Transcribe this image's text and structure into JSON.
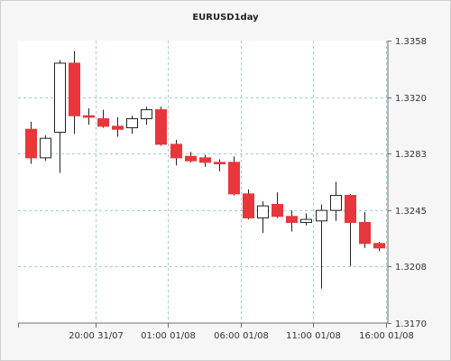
{
  "chart_data": {
    "type": "candlestick",
    "title": "EURUSD1day",
    "y_axis": {
      "ticks": [
        "1.3358",
        "1.3320",
        "1.3283",
        "1.3245",
        "1.3208",
        "1.3170"
      ],
      "ylim": [
        1.317,
        1.3358
      ],
      "position": "right"
    },
    "x_axis": {
      "ticks": [
        "20:00 31/07",
        "01:00 01/08",
        "06:00 01/08",
        "11:00 01/08",
        "16:00 01/08"
      ],
      "tick_index": [
        4.5,
        9.5,
        14.5,
        19.5,
        24.5
      ]
    },
    "grid": true,
    "colors": {
      "bull_fill": "#ffffff",
      "bear_fill": "#e8363c",
      "outline": "#222222",
      "grid": "#9ecfcf",
      "plot_bg": "#ffffff",
      "page_bg": "#f6f6f6"
    },
    "candles": [
      {
        "o": 1.3299,
        "h": 1.3304,
        "l": 1.3276,
        "c": 1.328
      },
      {
        "o": 1.328,
        "h": 1.3295,
        "l": 1.3278,
        "c": 1.3293
      },
      {
        "o": 1.3297,
        "h": 1.3345,
        "l": 1.327,
        "c": 1.3343
      },
      {
        "o": 1.3343,
        "h": 1.3351,
        "l": 1.3296,
        "c": 1.3308
      },
      {
        "o": 1.3308,
        "h": 1.3313,
        "l": 1.3302,
        "c": 1.3307
      },
      {
        "o": 1.3306,
        "h": 1.3312,
        "l": 1.33,
        "c": 1.3301
      },
      {
        "o": 1.3301,
        "h": 1.3307,
        "l": 1.3294,
        "c": 1.3299
      },
      {
        "o": 1.33,
        "h": 1.3308,
        "l": 1.3296,
        "c": 1.3306
      },
      {
        "o": 1.3306,
        "h": 1.3314,
        "l": 1.3302,
        "c": 1.3312
      },
      {
        "o": 1.3312,
        "h": 1.3314,
        "l": 1.3288,
        "c": 1.3289
      },
      {
        "o": 1.3289,
        "h": 1.3292,
        "l": 1.3275,
        "c": 1.328
      },
      {
        "o": 1.3281,
        "h": 1.3284,
        "l": 1.3277,
        "c": 1.3278
      },
      {
        "o": 1.328,
        "h": 1.3282,
        "l": 1.3274,
        "c": 1.3277
      },
      {
        "o": 1.3277,
        "h": 1.3279,
        "l": 1.3271,
        "c": 1.3276
      },
      {
        "o": 1.3277,
        "h": 1.3281,
        "l": 1.3255,
        "c": 1.3256
      },
      {
        "o": 1.3256,
        "h": 1.3259,
        "l": 1.3239,
        "c": 1.324
      },
      {
        "o": 1.324,
        "h": 1.3251,
        "l": 1.323,
        "c": 1.3248
      },
      {
        "o": 1.3249,
        "h": 1.3257,
        "l": 1.324,
        "c": 1.3241
      },
      {
        "o": 1.3241,
        "h": 1.3245,
        "l": 1.3231,
        "c": 1.3237
      },
      {
        "o": 1.3237,
        "h": 1.3243,
        "l": 1.3235,
        "c": 1.3239
      },
      {
        "o": 1.3238,
        "h": 1.3249,
        "l": 1.3193,
        "c": 1.3245
      },
      {
        "o": 1.3245,
        "h": 1.3264,
        "l": 1.3238,
        "c": 1.3255
      },
      {
        "o": 1.3255,
        "h": 1.3256,
        "l": 1.3208,
        "c": 1.3237
      },
      {
        "o": 1.3237,
        "h": 1.3244,
        "l": 1.322,
        "c": 1.3223
      },
      {
        "o": 1.3223,
        "h": 1.3224,
        "l": 1.3218,
        "c": 1.322
      }
    ]
  }
}
